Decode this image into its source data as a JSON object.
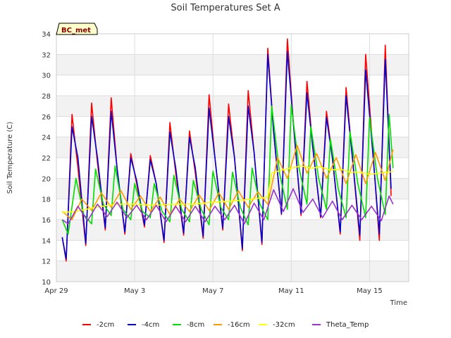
{
  "chart_data": {
    "type": "line",
    "title": "Soil Temperatures Set A",
    "xlabel": "Time",
    "ylabel": "Soil Temperature (C)",
    "badge": "BC_met",
    "ylim": [
      10,
      34
    ],
    "yticks": [
      10,
      12,
      14,
      16,
      18,
      20,
      22,
      24,
      26,
      28,
      30,
      32,
      34
    ],
    "xlim": [
      0,
      18
    ],
    "xticks": [
      {
        "x": 0,
        "label": "Apr 29"
      },
      {
        "x": 4,
        "label": "May 3"
      },
      {
        "x": 8,
        "label": "May 7"
      },
      {
        "x": 12,
        "label": "May 11"
      },
      {
        "x": 16,
        "label": "May 15"
      }
    ],
    "grid": true,
    "legend_position": "bottom",
    "x_unit": "days since Apr 29",
    "series": [
      {
        "name": "-2cm",
        "color": "#ff0000",
        "x": [
          0.3,
          0.5,
          0.8,
          1.1,
          1.5,
          1.8,
          2.1,
          2.5,
          2.8,
          3.1,
          3.5,
          3.8,
          4.1,
          4.5,
          4.8,
          5.1,
          5.5,
          5.8,
          6.1,
          6.5,
          6.8,
          7.1,
          7.5,
          7.8,
          8.1,
          8.5,
          8.8,
          9.1,
          9.5,
          9.8,
          10.1,
          10.5,
          10.8,
          11.1,
          11.5,
          11.8,
          12.1,
          12.5,
          12.8,
          13.1,
          13.5,
          13.8,
          14.1,
          14.5,
          14.8,
          15.1,
          15.5,
          15.8,
          16.1,
          16.5,
          16.8,
          17.1
        ],
        "y": [
          14.3,
          12.0,
          26.2,
          21.0,
          13.5,
          27.3,
          21.5,
          15.0,
          27.8,
          21.0,
          14.6,
          22.4,
          19.5,
          15.3,
          22.2,
          19.5,
          13.8,
          25.4,
          20.5,
          14.5,
          24.6,
          20.5,
          14.2,
          28.1,
          22.0,
          15.0,
          27.2,
          22.0,
          13.0,
          28.5,
          22.5,
          13.6,
          32.6,
          24.5,
          16.5,
          33.5,
          25.5,
          16.4,
          29.4,
          23.0,
          16.2,
          26.5,
          22.0,
          14.6,
          28.8,
          22.5,
          14.0,
          32.0,
          24.5,
          14.0,
          32.9,
          18.3
        ]
      },
      {
        "name": "-4cm",
        "color": "#0000cc",
        "x": [
          0.3,
          0.5,
          0.8,
          1.1,
          1.5,
          1.8,
          2.1,
          2.5,
          2.8,
          3.1,
          3.5,
          3.8,
          4.1,
          4.5,
          4.8,
          5.1,
          5.5,
          5.8,
          6.1,
          6.5,
          6.8,
          7.1,
          7.5,
          7.8,
          8.1,
          8.5,
          8.8,
          9.1,
          9.5,
          9.8,
          10.1,
          10.5,
          10.8,
          11.1,
          11.5,
          11.8,
          12.1,
          12.5,
          12.8,
          13.1,
          13.5,
          13.8,
          14.1,
          14.5,
          14.8,
          15.1,
          15.5,
          15.8,
          16.1,
          16.5,
          16.8,
          17.1
        ],
        "y": [
          14.3,
          12.2,
          25.0,
          22.0,
          13.7,
          26.0,
          22.0,
          15.2,
          26.5,
          21.0,
          14.8,
          22.0,
          19.8,
          15.5,
          21.8,
          19.5,
          14.0,
          24.5,
          21.0,
          14.7,
          24.0,
          21.0,
          14.4,
          26.8,
          22.0,
          15.2,
          26.0,
          22.0,
          13.2,
          27.0,
          22.5,
          13.8,
          32.0,
          24.5,
          16.6,
          32.3,
          25.5,
          16.6,
          28.3,
          23.0,
          16.3,
          25.9,
          22.0,
          14.8,
          28.0,
          22.5,
          14.5,
          30.5,
          24.0,
          14.6,
          31.5,
          19.0
        ]
      },
      {
        "name": "-8cm",
        "color": "#00dd00",
        "x": [
          0.3,
          0.6,
          1.0,
          1.4,
          1.8,
          2.0,
          2.4,
          2.8,
          3.0,
          3.4,
          3.8,
          4.0,
          4.4,
          4.8,
          5.0,
          5.4,
          5.8,
          6.0,
          6.4,
          6.8,
          7.0,
          7.4,
          7.8,
          8.0,
          8.4,
          8.8,
          9.0,
          9.4,
          9.8,
          10.0,
          10.4,
          10.8,
          11.0,
          11.4,
          11.8,
          12.0,
          12.4,
          12.8,
          13.0,
          13.4,
          13.8,
          14.0,
          14.4,
          14.8,
          15.0,
          15.4,
          15.8,
          16.0,
          16.4,
          16.8,
          17.0,
          17.2
        ],
        "y": [
          16.0,
          14.6,
          20.0,
          16.5,
          15.6,
          20.9,
          17.5,
          16.4,
          21.2,
          17.0,
          16.0,
          19.5,
          16.8,
          16.2,
          19.5,
          16.8,
          15.8,
          20.3,
          17.0,
          15.8,
          19.8,
          17.0,
          15.5,
          20.7,
          17.2,
          16.0,
          20.6,
          17.2,
          15.5,
          21.0,
          17.5,
          16.0,
          27.0,
          20.5,
          17.0,
          27.1,
          21.0,
          17.5,
          25.0,
          20.0,
          17.0,
          23.8,
          19.0,
          16.2,
          24.5,
          19.5,
          16.2,
          25.9,
          20.0,
          16.5,
          26.2,
          21.0
        ]
      },
      {
        "name": "-16cm",
        "color": "#ff9900",
        "x": [
          0.3,
          0.8,
          1.3,
          1.8,
          2.3,
          2.8,
          3.3,
          3.8,
          4.3,
          4.8,
          5.3,
          5.8,
          6.3,
          6.8,
          7.3,
          7.8,
          8.3,
          8.8,
          9.3,
          9.8,
          10.3,
          10.8,
          11.3,
          11.8,
          12.3,
          12.8,
          13.3,
          13.8,
          14.3,
          14.8,
          15.3,
          15.8,
          16.3,
          16.8,
          17.2
        ],
        "y": [
          16.8,
          16.0,
          18.0,
          16.9,
          18.6,
          17.2,
          18.8,
          17.0,
          18.3,
          16.8,
          18.2,
          16.5,
          18.0,
          16.8,
          18.4,
          16.9,
          18.6,
          17.0,
          18.8,
          17.2,
          18.7,
          17.5,
          22.0,
          20.0,
          23.2,
          20.5,
          22.4,
          20.0,
          22.0,
          19.5,
          22.3,
          19.5,
          22.5,
          19.8,
          22.8
        ]
      },
      {
        "name": "-32cm",
        "color": "#ffff00",
        "x": [
          0.3,
          1.0,
          2.0,
          3.0,
          4.0,
          5.0,
          6.0,
          7.0,
          8.0,
          9.0,
          10.0,
          10.8,
          11.0,
          11.5,
          12.0,
          12.5,
          13.0,
          13.5,
          14.0,
          14.5,
          15.0,
          15.5,
          16.0,
          16.5,
          17.0,
          17.2
        ],
        "y": [
          16.7,
          16.8,
          17.2,
          17.5,
          17.5,
          17.4,
          17.5,
          17.5,
          17.7,
          17.8,
          18.0,
          18.2,
          20.5,
          20.8,
          21.0,
          21.2,
          21.0,
          21.1,
          20.8,
          20.9,
          20.6,
          20.6,
          20.4,
          20.5,
          20.6,
          20.7
        ]
      },
      {
        "name": "Theta_Temp",
        "color": "#9933cc",
        "x": [
          0.3,
          0.6,
          1.1,
          1.6,
          2.1,
          2.6,
          3.1,
          3.6,
          4.1,
          4.6,
          5.1,
          5.6,
          6.1,
          6.6,
          7.1,
          7.6,
          8.1,
          8.6,
          9.1,
          9.6,
          10.1,
          10.6,
          11.1,
          11.6,
          12.1,
          12.6,
          13.1,
          13.6,
          14.1,
          14.6,
          15.1,
          15.6,
          16.1,
          16.6,
          17.0,
          17.2
        ],
        "y": [
          16.0,
          15.6,
          17.3,
          15.9,
          17.5,
          16.3,
          17.7,
          16.2,
          17.4,
          16.0,
          17.4,
          15.8,
          17.3,
          15.8,
          17.3,
          15.8,
          17.3,
          16.0,
          17.4,
          15.6,
          17.6,
          16.0,
          18.9,
          16.8,
          19.0,
          16.7,
          18.0,
          16.2,
          17.8,
          16.0,
          17.4,
          16.0,
          17.3,
          15.9,
          18.3,
          17.5
        ]
      }
    ]
  }
}
